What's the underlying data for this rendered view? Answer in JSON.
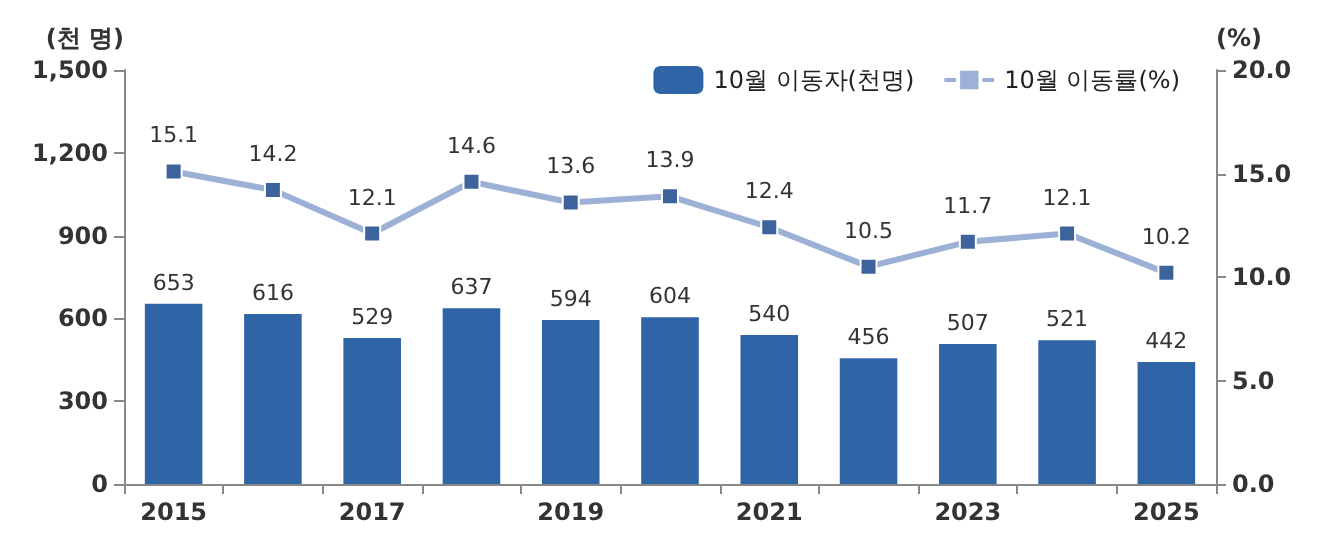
{
  "chart_data": {
    "type": "bar",
    "categories": [
      "2015",
      null,
      "2017",
      null,
      "2019",
      null,
      "2021",
      null,
      "2023",
      null,
      "2025"
    ],
    "series": [
      {
        "name": "10월 이동자(천명)",
        "color": "#2f64a6",
        "values": [
          653,
          616,
          529,
          637,
          594,
          604,
          540,
          456,
          507,
          521,
          442
        ]
      },
      {
        "name": "10월 이동률(%)",
        "type": "line",
        "axis": "y2",
        "color": "#9db1d6",
        "marker": "square",
        "values": [
          15.1,
          14.2,
          12.1,
          14.6,
          13.6,
          13.9,
          12.4,
          10.5,
          11.7,
          12.1,
          10.2
        ]
      }
    ],
    "ylabel": "(천 명)",
    "y2label": "(%)",
    "ylim": [
      0,
      1500
    ],
    "yticks": [
      0,
      300,
      600,
      900,
      {
        "value": 1200,
        "label": "1,200"
      },
      {
        "value": 1500,
        "label": "1,500"
      }
    ],
    "y2lim": [
      0,
      20
    ],
    "y2ticks": [
      {
        "value": 0,
        "label": "0.0"
      },
      {
        "value": 5,
        "label": "5.0"
      },
      {
        "value": 10,
        "label": "10.0"
      },
      {
        "value": 15,
        "label": "15.0"
      },
      {
        "value": 20,
        "label": "20.0"
      }
    ],
    "data_labels": true,
    "legend": "top right",
    "grid": false
  }
}
